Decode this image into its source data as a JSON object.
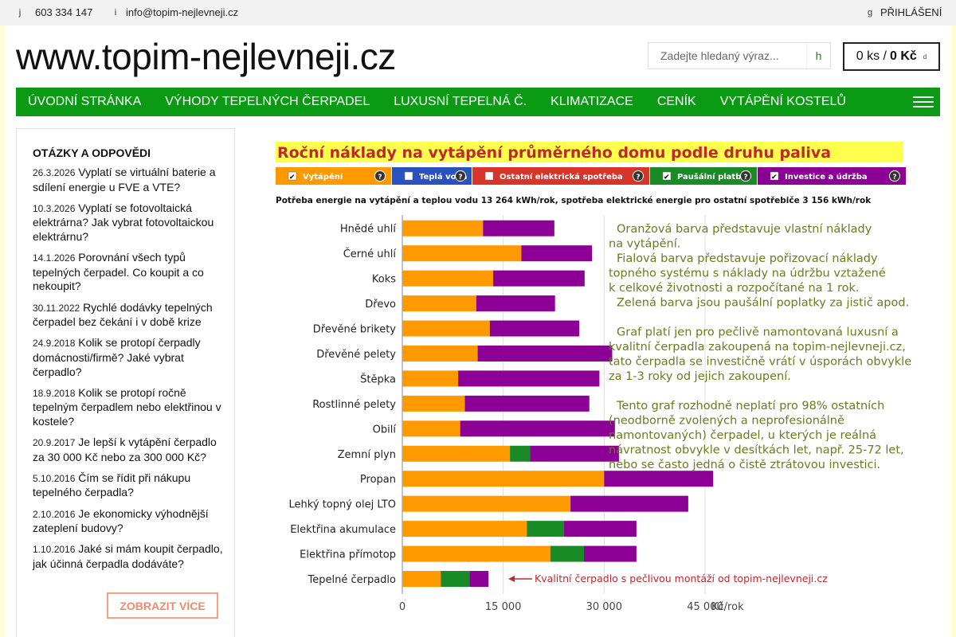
{
  "topbar": {
    "phone_icon": "j",
    "phone": "603 334 147",
    "email_icon": "i",
    "email": "info@topim-nejlevneji.cz",
    "login_icon": "g",
    "login": "PŘIHLÁŠENÍ"
  },
  "header": {
    "logo": "www.topim-nejlevneji.cz",
    "search_placeholder": "Zadejte hledaný výraz...",
    "search_icon": "h",
    "cart_count": "0 ks /",
    "cart_total": "0 Kč",
    "cart_icon": "d"
  },
  "nav": {
    "items": [
      "ÚVODNÍ STRÁNKA",
      "VÝHODY TEPELNÝCH ČERPADEL",
      "LUXUSNÍ TEPELNÁ Č.",
      "KLIMATIZACE",
      "CENÍK",
      "VYTÁPĚNÍ KOSTELŮ"
    ]
  },
  "sidebar": {
    "title": "OTÁZKY A ODPOVĚDI",
    "items": [
      {
        "date": "26.3.2026",
        "text": "Vyplatí se virtuální baterie a sdílení energie u FVE a VTE?"
      },
      {
        "date": "10.3.2026",
        "text": "Vyplatí se fotovoltaická elektrárna? Jak vybrat fotovoltaickou elektrárnu?"
      },
      {
        "date": "14.1.2026",
        "text": "Porovnání všech typů tepelných čerpadel. Co koupit a co nekoupit?"
      },
      {
        "date": "30.11.2022",
        "text": "Rychlé dodávky tepelných čerpadel bez čekání i v době krize"
      },
      {
        "date": "24.9.2018",
        "text": "Kolik se protopí čerpadly domácnosti/firmě? Jaké vybrat čerpadlo?"
      },
      {
        "date": "18.9.2018",
        "text": "Kolik se protopí ročně tepelným čerpadlem nebo elektřinou v kostele?"
      },
      {
        "date": "20.9.2017",
        "text": "Je lepší k vytápění čerpadlo za 30 000 Kč nebo za 300 000 Kč?"
      },
      {
        "date": "5.10.2016",
        "text": "Čím se řídit při nákupu tepelného čerpadla?"
      },
      {
        "date": "2.10.2016",
        "text": "Je ekonomicky výhodnější zateplení budovy?"
      },
      {
        "date": "1.10.2016",
        "text": "Jaké si mám koupit čerpadlo, jak účinná čerpadla dodáváte?"
      }
    ],
    "more": "ZOBRAZIT VÍCE"
  },
  "chart_data": {
    "type": "bar",
    "orientation": "horizontal",
    "stacked": true,
    "title": "Roční náklady na vytápění průměrného domu podle druhu paliva",
    "subtitle": "Potřeba energie na vytápění a teplou vodu 13 264 kWh/rok, spotřeba elektrické energie pro ostatní spotřebiče 3 156 kWh/rok",
    "legend": [
      {
        "name": "Vytápění",
        "color": "#ff9900",
        "checked": true
      },
      {
        "name": "Teplá voda",
        "color": "#2a52be",
        "checked": false
      },
      {
        "name": "Ostatní elektrická spotřeba",
        "color": "#d7352a",
        "checked": false
      },
      {
        "name": "Paušální platby",
        "color": "#1a8a26",
        "checked": true
      },
      {
        "name": "Investice a údržba",
        "color": "#8c0096",
        "checked": true
      }
    ],
    "categories": [
      "Hnědé uhlí",
      "Černé uhlí",
      "Koks",
      "Dřevo",
      "Dřevěné brikety",
      "Dřevěné pelety",
      "Štěpka",
      "Rostlinné pelety",
      "Obilí",
      "Zemní plyn",
      "Propan",
      "Lehký topný olej LTO",
      "Elektřina akumulace",
      "Elektřina přímotop",
      "Tepelné čerpadlo"
    ],
    "series": [
      {
        "name": "Vytápění",
        "color": "#ff9900",
        "values": [
          12000,
          17700,
          13500,
          11000,
          13000,
          11200,
          8300,
          9300,
          8600,
          16000,
          30000,
          25000,
          18500,
          22000,
          5700
        ]
      },
      {
        "name": "Paušální platby",
        "color": "#1a8a26",
        "values": [
          0,
          0,
          0,
          0,
          0,
          0,
          0,
          0,
          0,
          3000,
          0,
          0,
          5500,
          5000,
          4300
        ]
      },
      {
        "name": "Investice a údržba",
        "color": "#8c0096",
        "values": [
          10600,
          10500,
          13600,
          11700,
          13300,
          20000,
          21000,
          18500,
          23000,
          13200,
          16200,
          17500,
          10800,
          7800,
          2800
        ]
      }
    ],
    "xlim": [
      0,
      45000
    ],
    "xticks": [
      "0",
      "15 000",
      "30 000",
      "45 000"
    ],
    "xlabel": "Kč/rok",
    "annotation": "Kvalitní čerpadlo s pečlivou montáží od topim-nejlevneji.cz",
    "notes": [
      "Oranžová barva představuje vlastní náklady",
      "na vytápění.",
      "Fialová barva představuje pořizovací náklady",
      "topného systému s náklady na údržbu vztažené",
      "k celkové životnosti a rozpočítané na 1 rok.",
      "Zelená barva jsou paušální poplatky za jistič apod.",
      "",
      "Graf platí jen pro pečlivě namontovaná luxusní a",
      "kvalitní čerpadla zakoupená na topim-nejlevneji.cz,",
      "tato čerpadla se investičně vrátí v úsporách obvykle",
      "za 1-3 roky od jejich zakoupení.",
      "",
      "Tento graf rozhodně neplatí pro 98% ostatních",
      "(neodborně zvolených a neprofesionálně",
      "namontovaných) čerpadel, u kterých je reálná",
      "návratnost obvykle v desítkách let, např. 25-72 let,",
      "nebo se často jedná o čistě ztrátovou investici."
    ],
    "colors": {
      "title_bg": "#ffff4d",
      "title_text": "#c0282d",
      "notes_text": "#6b7b1e",
      "annotation_text": "#c0282d"
    }
  }
}
